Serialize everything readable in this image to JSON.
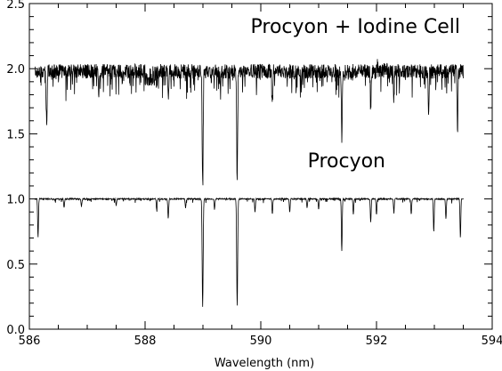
{
  "chart_data": {
    "type": "line",
    "title": "",
    "xlabel": "Wavelength (nm)",
    "ylabel": "",
    "xlim": [
      586,
      594
    ],
    "ylim": [
      0.0,
      2.5
    ],
    "x_ticks": [
      "586",
      "588",
      "590",
      "592",
      "594"
    ],
    "y_ticks": [
      "0.0",
      "0.5",
      "1.0",
      "1.5",
      "2.0",
      "2.5"
    ],
    "grid": false,
    "annotations": [
      "Procyon + Iodine Cell",
      "Procyon"
    ],
    "line_color": "#000000",
    "series": [
      {
        "continuum": 1.98,
        "x_range": [
          586.1,
          593.5
        ],
        "noise_amplitude": 0.08,
        "absorption_lines": [
          {
            "x": 586.3,
            "depth": 0.38
          },
          {
            "x": 587.2,
            "depth": 0.15
          },
          {
            "x": 588.4,
            "depth": 0.2
          },
          {
            "x": 588.995,
            "depth": 0.86
          },
          {
            "x": 589.3,
            "depth": 0.12
          },
          {
            "x": 589.592,
            "depth": 0.83
          },
          {
            "x": 590.2,
            "depth": 0.25
          },
          {
            "x": 590.7,
            "depth": 0.15
          },
          {
            "x": 591.4,
            "depth": 0.55
          },
          {
            "x": 591.9,
            "depth": 0.3
          },
          {
            "x": 592.3,
            "depth": 0.2
          },
          {
            "x": 592.9,
            "depth": 0.35
          },
          {
            "x": 593.4,
            "depth": 0.5
          }
        ]
      },
      {
        "continuum": 1.0,
        "x_range": [
          586.1,
          593.5
        ],
        "noise_amplitude": 0.01,
        "absorption_lines": [
          {
            "x": 586.15,
            "depth": 0.3
          },
          {
            "x": 586.6,
            "depth": 0.07
          },
          {
            "x": 586.9,
            "depth": 0.06
          },
          {
            "x": 587.5,
            "depth": 0.05
          },
          {
            "x": 588.2,
            "depth": 0.08
          },
          {
            "x": 588.4,
            "depth": 0.15
          },
          {
            "x": 588.7,
            "depth": 0.07
          },
          {
            "x": 588.995,
            "depth": 0.83
          },
          {
            "x": 589.2,
            "depth": 0.08
          },
          {
            "x": 589.592,
            "depth": 0.82
          },
          {
            "x": 589.9,
            "depth": 0.1
          },
          {
            "x": 590.2,
            "depth": 0.12
          },
          {
            "x": 590.5,
            "depth": 0.1
          },
          {
            "x": 590.8,
            "depth": 0.07
          },
          {
            "x": 591.0,
            "depth": 0.08
          },
          {
            "x": 591.4,
            "depth": 0.4
          },
          {
            "x": 591.6,
            "depth": 0.12
          },
          {
            "x": 591.9,
            "depth": 0.18
          },
          {
            "x": 592.0,
            "depth": 0.12
          },
          {
            "x": 592.3,
            "depth": 0.1
          },
          {
            "x": 592.6,
            "depth": 0.12
          },
          {
            "x": 592.99,
            "depth": 0.25
          },
          {
            "x": 593.2,
            "depth": 0.15
          },
          {
            "x": 593.45,
            "depth": 0.3
          }
        ]
      }
    ]
  }
}
